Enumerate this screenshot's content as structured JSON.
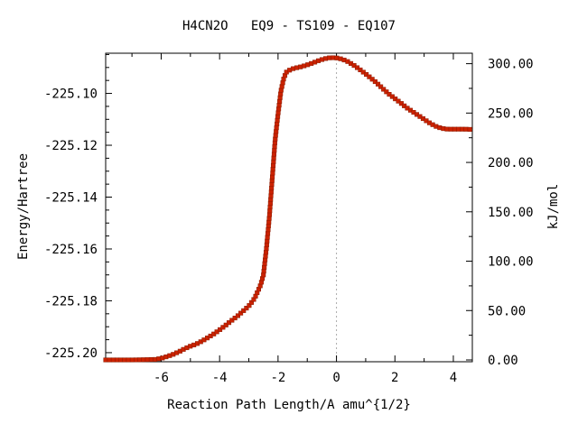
{
  "chart_data": {
    "type": "line",
    "title": "H4CN2O   EQ9 - TS109 - EQ107",
    "xlabel": "Reaction Path Length/A amu^{1/2}",
    "ylabel": "Energy/Hartree",
    "y2label": "kJ/mol",
    "xlim": [
      -7.9,
      4.65
    ],
    "ylim": [
      -225.2035,
      -225.0845
    ],
    "x_ticks": [
      -6,
      -4,
      -2,
      0,
      2,
      4
    ],
    "x_tick_labels": [
      "-6",
      "-4",
      "-2",
      "0",
      "2",
      "4"
    ],
    "y_ticks": [
      -225.2,
      -225.18,
      -225.16,
      -225.14,
      -225.12,
      -225.1
    ],
    "y_tick_labels": [
      "-225.20",
      "-225.18",
      "-225.16",
      "-225.14",
      "-225.12",
      "-225.10"
    ],
    "y2_ticks": [
      0,
      50,
      100,
      150,
      200,
      250,
      300
    ],
    "y2_tick_labels": [
      "0.00",
      "50.00",
      "100.00",
      "150.00",
      "200.00",
      "250.00",
      "300.00"
    ],
    "y2_reference_hartree": -225.2028,
    "hartree_to_kjmol": 2625.5,
    "ts_x": 0,
    "grid": false,
    "legend": "none",
    "line_color": "#00aa00",
    "marker_color": "#cc2200",
    "guide_color": "#aaaaaa",
    "series": [
      {
        "x": [
          -7.9,
          -7.5,
          -7.0,
          -6.5,
          -6.2,
          -6.0,
          -5.8,
          -5.6,
          -5.4,
          -5.2,
          -5.0,
          -4.8,
          -4.6,
          -4.4,
          -4.2,
          -4.0,
          -3.8,
          -3.6,
          -3.4,
          -3.2,
          -3.0,
          -2.8,
          -2.6,
          -2.5,
          -2.4,
          -2.3,
          -2.2,
          -2.1,
          -2.0,
          -1.9,
          -1.8,
          -1.7,
          -1.6,
          -1.5,
          -1.4,
          -1.2,
          -1.0,
          -0.8,
          -0.6,
          -0.4,
          -0.2,
          0.0,
          0.2,
          0.4,
          0.6,
          0.8,
          1.0,
          1.2,
          1.4,
          1.6,
          1.8,
          2.0,
          2.2,
          2.4,
          2.6,
          2.8,
          3.0,
          3.2,
          3.4,
          3.6,
          3.8,
          4.0,
          4.2,
          4.4,
          4.65
        ],
        "y": [
          -225.2028,
          -225.2028,
          -225.2028,
          -225.2027,
          -225.2026,
          -225.2022,
          -225.2015,
          -225.2007,
          -225.1997,
          -225.1985,
          -225.1975,
          -225.1967,
          -225.1955,
          -225.1942,
          -225.1928,
          -225.1912,
          -225.1895,
          -225.1877,
          -225.186,
          -225.184,
          -225.182,
          -225.179,
          -225.174,
          -225.17,
          -225.16,
          -225.148,
          -225.133,
          -225.118,
          -225.108,
          -225.099,
          -225.094,
          -225.0915,
          -225.091,
          -225.0905,
          -225.0902,
          -225.0897,
          -225.089,
          -225.0882,
          -225.0873,
          -225.0866,
          -225.0862,
          -225.0863,
          -225.0868,
          -225.0878,
          -225.0892,
          -225.0908,
          -225.0925,
          -225.0943,
          -225.0962,
          -225.0983,
          -225.1003,
          -225.102,
          -225.1037,
          -225.1055,
          -225.107,
          -225.1085,
          -225.11,
          -225.1115,
          -225.1127,
          -225.1135,
          -225.1138,
          -225.1138,
          -225.1138,
          -225.1138,
          -225.1139
        ]
      }
    ]
  }
}
